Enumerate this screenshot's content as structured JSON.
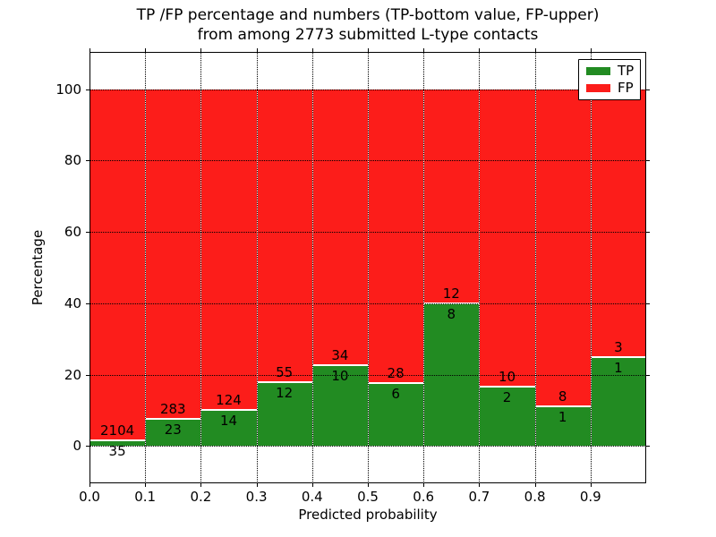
{
  "figure": {
    "title_line1": "TP /FP percentage and numbers (TP-bottom value, FP-upper)",
    "title_line2": "from among 2773 submitted L-type contacts"
  },
  "axes": {
    "xlabel": "Predicted probability",
    "ylabel": "Percentage",
    "xtick_labels": [
      "0.0",
      "0.1",
      "0.2",
      "0.3",
      "0.4",
      "0.5",
      "0.6",
      "0.7",
      "0.8",
      "0.9"
    ],
    "ytick_values": [
      0,
      20,
      40,
      60,
      80,
      100
    ]
  },
  "legend": {
    "items": [
      {
        "label": "TP",
        "color": "#228b22"
      },
      {
        "label": "FP",
        "color": "#fc1d1a"
      }
    ]
  },
  "chart_data": {
    "type": "bar",
    "subtype": "stacked-percentage-histogram",
    "title": "TP /FP percentage and numbers (TP-bottom value, FP-upper) from among 2773 submitted L-type contacts",
    "xlabel": "Predicted probability",
    "ylabel": "Percentage",
    "total_contacts": 2773,
    "bin_edges": [
      0.0,
      0.1,
      0.2,
      0.3,
      0.4,
      0.5,
      0.6,
      0.7,
      0.8,
      0.9,
      1.0
    ],
    "categories": [
      "0.0-0.1",
      "0.1-0.2",
      "0.2-0.3",
      "0.3-0.4",
      "0.4-0.5",
      "0.5-0.6",
      "0.6-0.7",
      "0.7-0.8",
      "0.8-0.9",
      "0.9-1.0"
    ],
    "series": [
      {
        "name": "TP",
        "color": "#228b22",
        "counts": [
          35,
          23,
          14,
          12,
          10,
          6,
          8,
          2,
          1,
          1
        ]
      },
      {
        "name": "FP",
        "color": "#fc1d1a",
        "counts": [
          2104,
          283,
          124,
          55,
          34,
          28,
          12,
          10,
          8,
          3
        ]
      }
    ],
    "tp_percent_per_bin": [
      1.6,
      7.5,
      10.1,
      17.9,
      22.7,
      17.6,
      40.0,
      16.7,
      11.1,
      25.0
    ],
    "bars_stack_to_percent": 100,
    "ylim": [
      -10.5,
      110.5
    ],
    "grid": "dotted",
    "legend_position": "upper right"
  }
}
